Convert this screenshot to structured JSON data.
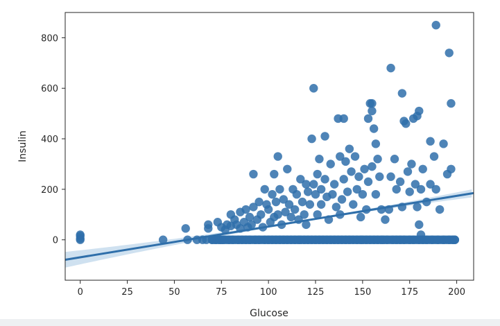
{
  "chart_data": {
    "type": "scatter",
    "xlabel": "Glucose",
    "ylabel": "Insulin",
    "xlim": [
      -8,
      209
    ],
    "ylim": [
      -160,
      900
    ],
    "xticks": [
      0,
      25,
      50,
      75,
      100,
      125,
      150,
      175,
      200
    ],
    "yticks": [
      0,
      200,
      400,
      600,
      800
    ],
    "grid": false,
    "color": "#2f6faa",
    "regression": {
      "x": [
        -8,
        209
      ],
      "y": [
        -79,
        185
      ],
      "ci_color": "#a8c9e4"
    },
    "points": [
      [
        0,
        0
      ],
      [
        0,
        5
      ],
      [
        0,
        15
      ],
      [
        0,
        20
      ],
      [
        44,
        0
      ],
      [
        56,
        45
      ],
      [
        57,
        0
      ],
      [
        62,
        0
      ],
      [
        65,
        0
      ],
      [
        67,
        0
      ],
      [
        68,
        45
      ],
      [
        68,
        60
      ],
      [
        70,
        0
      ],
      [
        72,
        0
      ],
      [
        73,
        70
      ],
      [
        74,
        0
      ],
      [
        75,
        50
      ],
      [
        75,
        0
      ],
      [
        76,
        0
      ],
      [
        77,
        40
      ],
      [
        78,
        60
      ],
      [
        79,
        0
      ],
      [
        80,
        100
      ],
      [
        80,
        55
      ],
      [
        81,
        0
      ],
      [
        82,
        80
      ],
      [
        83,
        60
      ],
      [
        84,
        0
      ],
      [
        85,
        110
      ],
      [
        85,
        45
      ],
      [
        86,
        0
      ],
      [
        87,
        70
      ],
      [
        88,
        120
      ],
      [
        88,
        0
      ],
      [
        89,
        50
      ],
      [
        90,
        90
      ],
      [
        90,
        0
      ],
      [
        91,
        60
      ],
      [
        92,
        260
      ],
      [
        92,
        130
      ],
      [
        93,
        0
      ],
      [
        94,
        80
      ],
      [
        95,
        150
      ],
      [
        95,
        0
      ],
      [
        96,
        100
      ],
      [
        97,
        50
      ],
      [
        98,
        200
      ],
      [
        98,
        0
      ],
      [
        99,
        140
      ],
      [
        100,
        120
      ],
      [
        100,
        0
      ],
      [
        101,
        70
      ],
      [
        102,
        180
      ],
      [
        102,
        0
      ],
      [
        103,
        260
      ],
      [
        103,
        90
      ],
      [
        104,
        150
      ],
      [
        104,
        0
      ],
      [
        105,
        330
      ],
      [
        105,
        100
      ],
      [
        106,
        200
      ],
      [
        106,
        0
      ],
      [
        107,
        60
      ],
      [
        108,
        160
      ],
      [
        108,
        0
      ],
      [
        109,
        110
      ],
      [
        110,
        280
      ],
      [
        110,
        0
      ],
      [
        111,
        140
      ],
      [
        112,
        90
      ],
      [
        112,
        0
      ],
      [
        113,
        200
      ],
      [
        114,
        120
      ],
      [
        114,
        0
      ],
      [
        115,
        180
      ],
      [
        116,
        80
      ],
      [
        116,
        0
      ],
      [
        117,
        240
      ],
      [
        117,
        0
      ],
      [
        118,
        150
      ],
      [
        119,
        100
      ],
      [
        119,
        0
      ],
      [
        120,
        220
      ],
      [
        120,
        60
      ],
      [
        121,
        190
      ],
      [
        121,
        0
      ],
      [
        122,
        140
      ],
      [
        123,
        400
      ],
      [
        123,
        0
      ],
      [
        124,
        600
      ],
      [
        124,
        220
      ],
      [
        125,
        180
      ],
      [
        125,
        0
      ],
      [
        126,
        260
      ],
      [
        126,
        100
      ],
      [
        127,
        320
      ],
      [
        127,
        0
      ],
      [
        128,
        200
      ],
      [
        128,
        140
      ],
      [
        129,
        0
      ],
      [
        130,
        410
      ],
      [
        130,
        240
      ],
      [
        131,
        170
      ],
      [
        131,
        0
      ],
      [
        132,
        80
      ],
      [
        133,
        300
      ],
      [
        133,
        0
      ],
      [
        134,
        180
      ],
      [
        135,
        220
      ],
      [
        135,
        0
      ],
      [
        136,
        130
      ],
      [
        137,
        480
      ],
      [
        137,
        0
      ],
      [
        138,
        330
      ],
      [
        138,
        100
      ],
      [
        139,
        160
      ],
      [
        139,
        0
      ],
      [
        140,
        480
      ],
      [
        140,
        240
      ],
      [
        141,
        310
      ],
      [
        141,
        0
      ],
      [
        142,
        190
      ],
      [
        143,
        360
      ],
      [
        143,
        0
      ],
      [
        144,
        270
      ],
      [
        145,
        140
      ],
      [
        145,
        0
      ],
      [
        146,
        330
      ],
      [
        147,
        200
      ],
      [
        147,
        0
      ],
      [
        148,
        250
      ],
      [
        149,
        90
      ],
      [
        149,
        0
      ],
      [
        150,
        180
      ],
      [
        150,
        0
      ],
      [
        151,
        280
      ],
      [
        152,
        120
      ],
      [
        152,
        0
      ],
      [
        153,
        480
      ],
      [
        153,
        230
      ],
      [
        154,
        540
      ],
      [
        154,
        0
      ],
      [
        155,
        510
      ],
      [
        155,
        540
      ],
      [
        155,
        290
      ],
      [
        156,
        440
      ],
      [
        156,
        0
      ],
      [
        157,
        380
      ],
      [
        157,
        180
      ],
      [
        158,
        320
      ],
      [
        158,
        0
      ],
      [
        159,
        250
      ],
      [
        160,
        120
      ],
      [
        160,
        0
      ],
      [
        161,
        0
      ],
      [
        162,
        80
      ],
      [
        163,
        0
      ],
      [
        164,
        120
      ],
      [
        165,
        680
      ],
      [
        165,
        250
      ],
      [
        166,
        0
      ],
      [
        167,
        320
      ],
      [
        168,
        200
      ],
      [
        168,
        0
      ],
      [
        170,
        230
      ],
      [
        170,
        0
      ],
      [
        171,
        580
      ],
      [
        171,
        130
      ],
      [
        172,
        470
      ],
      [
        172,
        0
      ],
      [
        173,
        460
      ],
      [
        174,
        270
      ],
      [
        175,
        190
      ],
      [
        175,
        0
      ],
      [
        176,
        300
      ],
      [
        177,
        480
      ],
      [
        177,
        0
      ],
      [
        178,
        220
      ],
      [
        179,
        490
      ],
      [
        179,
        130
      ],
      [
        180,
        510
      ],
      [
        180,
        0
      ],
      [
        181,
        200
      ],
      [
        182,
        280
      ],
      [
        182,
        0
      ],
      [
        184,
        150
      ],
      [
        184,
        0
      ],
      [
        186,
        390
      ],
      [
        186,
        220
      ],
      [
        187,
        0
      ],
      [
        188,
        330
      ],
      [
        189,
        850
      ],
      [
        189,
        200
      ],
      [
        190,
        0
      ],
      [
        191,
        120
      ],
      [
        193,
        380
      ],
      [
        193,
        0
      ],
      [
        195,
        260
      ],
      [
        196,
        740
      ],
      [
        196,
        0
      ],
      [
        197,
        540
      ],
      [
        197,
        280
      ],
      [
        198,
        0
      ],
      [
        199,
        0
      ],
      [
        180,
        60
      ],
      [
        181,
        20
      ]
    ],
    "dense_band": {
      "y": 0,
      "x_from": 70,
      "x_to": 199
    }
  }
}
